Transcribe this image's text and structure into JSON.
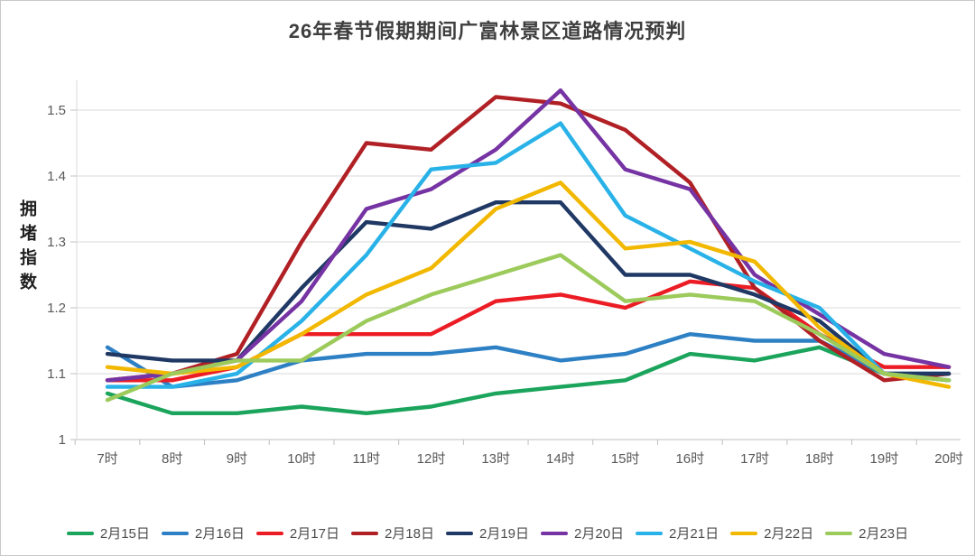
{
  "title": "26年春节假期期间广富林景区道路情况预判",
  "y_axis_label": "拥堵指数",
  "chart_data": {
    "type": "line",
    "title": "26年春节假期期间广富林景区道路情况预判",
    "xlabel": "",
    "ylabel": "拥堵指数",
    "ylim": [
      1.0,
      1.55
    ],
    "grid": "horizontal",
    "legend_position": "bottom",
    "y_ticks": [
      "1",
      "1.1",
      "1.2",
      "1.3",
      "1.4",
      "1.5"
    ],
    "categories": [
      "7时",
      "8时",
      "9时",
      "10时",
      "11时",
      "12时",
      "13时",
      "14时",
      "15时",
      "16时",
      "17时",
      "18时",
      "19时",
      "20时"
    ],
    "series": [
      {
        "name": "2月15日",
        "color": "#1BA45C",
        "values": [
          1.07,
          1.04,
          1.04,
          1.05,
          1.04,
          1.05,
          1.07,
          1.08,
          1.09,
          1.13,
          1.12,
          1.14,
          1.1,
          1.09
        ]
      },
      {
        "name": "2月16日",
        "color": "#2E80C4",
        "values": [
          1.14,
          1.08,
          1.09,
          1.12,
          1.13,
          1.13,
          1.14,
          1.12,
          1.13,
          1.16,
          1.15,
          1.15,
          1.1,
          1.1
        ]
      },
      {
        "name": "2月17日",
        "color": "#EC1C24",
        "values": [
          1.09,
          1.09,
          1.11,
          1.16,
          1.16,
          1.16,
          1.21,
          1.22,
          1.2,
          1.24,
          1.23,
          1.16,
          1.11,
          1.11
        ]
      },
      {
        "name": "2月18日",
        "color": "#B02025",
        "values": [
          1.09,
          1.1,
          1.13,
          1.3,
          1.45,
          1.44,
          1.52,
          1.51,
          1.47,
          1.39,
          1.23,
          1.15,
          1.09,
          1.1
        ]
      },
      {
        "name": "2月19日",
        "color": "#1F3864",
        "values": [
          1.13,
          1.12,
          1.12,
          1.23,
          1.33,
          1.32,
          1.36,
          1.36,
          1.25,
          1.25,
          1.22,
          1.18,
          1.1,
          1.1
        ]
      },
      {
        "name": "2月20日",
        "color": "#7633A3",
        "values": [
          1.09,
          1.1,
          1.12,
          1.21,
          1.35,
          1.38,
          1.44,
          1.53,
          1.41,
          1.38,
          1.25,
          1.19,
          1.13,
          1.11
        ]
      },
      {
        "name": "2月21日",
        "color": "#29B2E8",
        "values": [
          1.08,
          1.08,
          1.1,
          1.18,
          1.28,
          1.41,
          1.42,
          1.48,
          1.34,
          1.29,
          1.24,
          1.2,
          1.1,
          1.09
        ]
      },
      {
        "name": "2月22日",
        "color": "#F2B800",
        "values": [
          1.11,
          1.1,
          1.11,
          1.16,
          1.22,
          1.26,
          1.35,
          1.39,
          1.29,
          1.3,
          1.27,
          1.17,
          1.1,
          1.08
        ]
      },
      {
        "name": "2月23日",
        "color": "#9CCA5B",
        "values": [
          1.06,
          1.1,
          1.12,
          1.12,
          1.18,
          1.22,
          1.25,
          1.28,
          1.21,
          1.22,
          1.21,
          1.16,
          1.1,
          1.09
        ]
      }
    ],
    "colors": {
      "grid": "#D9D9D9",
      "axis": "#BFBFBF",
      "tick_text": "#595959",
      "title_text": "#3F3F3F"
    }
  }
}
